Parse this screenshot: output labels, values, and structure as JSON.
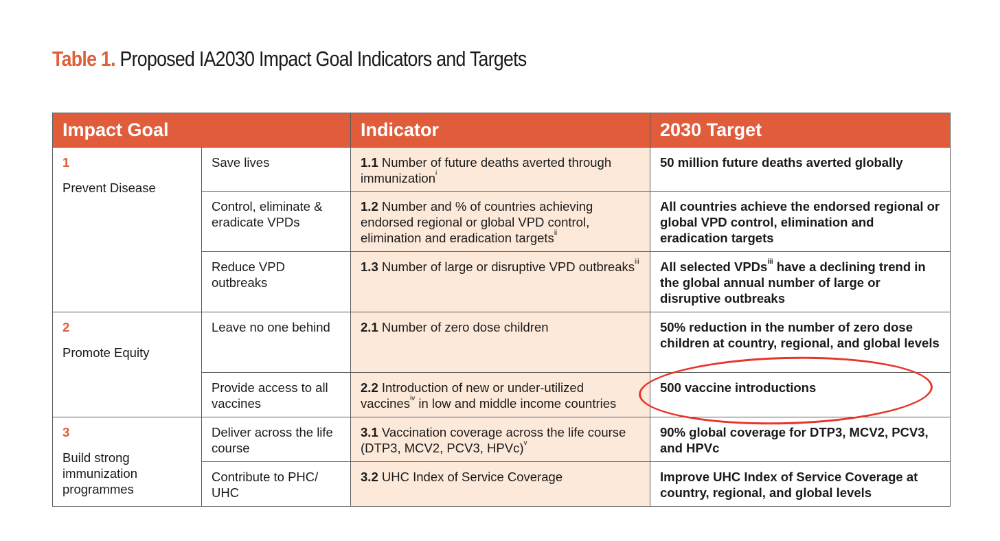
{
  "title": {
    "lead": "Table 1.",
    "rest": "Proposed IA2030 Impact Goal Indicators and Targets"
  },
  "headers": {
    "impact_goal": "Impact Goal",
    "indicator": "Indicator",
    "target": "2030 Target"
  },
  "goals": [
    {
      "number": "1",
      "name": "Prevent Disease"
    },
    {
      "number": "2",
      "name": "Promote Equity"
    },
    {
      "number": "3",
      "name": "Build strong immunization programmes"
    }
  ],
  "rows": [
    {
      "objective": "Save lives",
      "ind_num": "1.1",
      "ind_text": "Number of future deaths averted through immunization",
      "ind_sup": "i",
      "ind_tail": "",
      "target": "50 million future deaths averted globally"
    },
    {
      "objective": "Control, eliminate & eradicate VPDs",
      "ind_num": "1.2",
      "ind_text": "Number and % of countries achieving endorsed regional or global VPD control, elimination and eradication targets",
      "ind_sup": "ii",
      "ind_tail": "",
      "target": "All countries achieve the endorsed regional or global VPD control, elimination and eradication targets"
    },
    {
      "objective": "Reduce VPD outbreaks",
      "ind_num": "1.3",
      "ind_text": "Number of large or disruptive VPD outbreaks",
      "ind_sup": "iii",
      "ind_tail": "",
      "target_a": "All selected VPDs",
      "target_sup": "iii",
      "target_b": " have a declining trend in the global annual number of large or disruptive outbreaks"
    },
    {
      "objective": "Leave no one behind",
      "ind_num": "2.1",
      "ind_text": "Number of zero dose children",
      "ind_sup": "",
      "ind_tail": "",
      "target": "50% reduction in the number of zero dose children at country, regional, and global levels"
    },
    {
      "objective": "Provide access to all vaccines",
      "ind_num": "2.2",
      "ind_text": "Introduction of new or under-utilized vaccines",
      "ind_sup": "iv",
      "ind_tail": " in low and middle income countries",
      "target": "500 vaccine introductions"
    },
    {
      "objective": "Deliver across the life course",
      "ind_num": "3.1",
      "ind_text": "Vaccination coverage across the life course (DTP3, MCV2, PCV3, HPVc)",
      "ind_sup": "v",
      "ind_tail": "",
      "target": "90% global coverage for DTP3, MCV2, PCV3, and HPVc"
    },
    {
      "objective": "Contribute to PHC/ UHC",
      "ind_num": "3.2",
      "ind_text": "UHC Index of Service Coverage",
      "ind_sup": "",
      "ind_tail": "",
      "target": "Improve UHC Index of Service Coverage at country, regional, and global levels"
    }
  ],
  "colors": {
    "header_bg": "#e05c3a",
    "indicator_bg": "#fde9d9",
    "accent_text": "#e05c3a",
    "annotation_oval": "#e8342a"
  }
}
